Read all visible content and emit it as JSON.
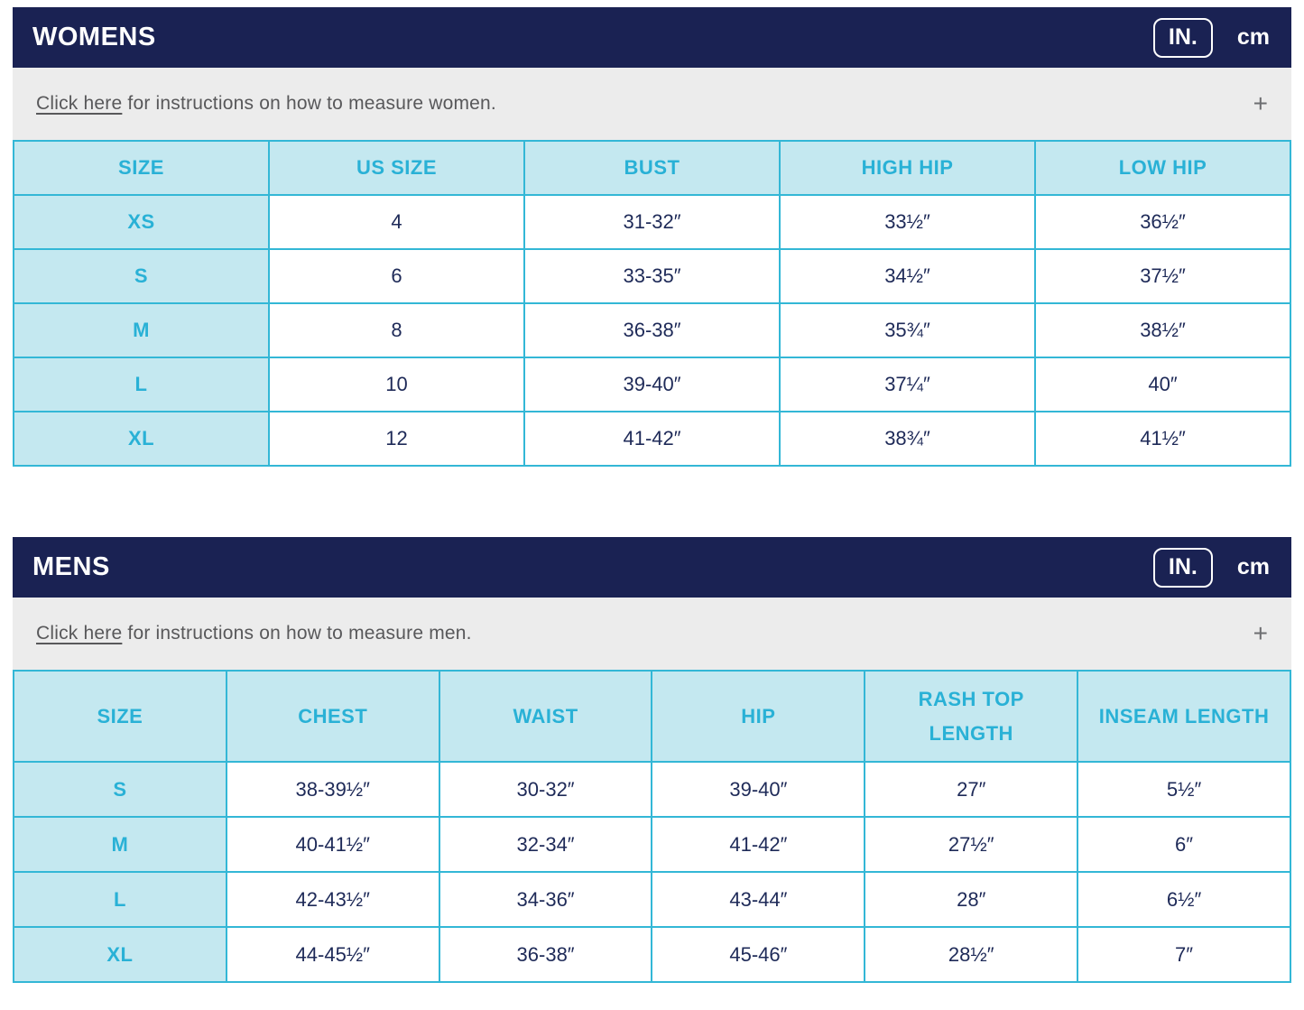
{
  "colors": {
    "navy_bar": "#1a2253",
    "accent_cyan": "#29b1d6",
    "cell_light_blue": "#c4e8f0",
    "table_border": "#33b7d6",
    "gray_bar": "#ececec",
    "gray_text": "#58585a",
    "data_text": "#1e2a58"
  },
  "sections": [
    {
      "id": "womens",
      "title": "WOMENS",
      "unit_in": "IN.",
      "unit_cm": "cm",
      "instructions_link": "Click here",
      "instructions_rest": " for instructions on how to measure women.",
      "expand_icon": "+",
      "table": {
        "columns": [
          "SIZE",
          "US SIZE",
          "BUST",
          "HIGH HIP",
          "LOW HIP"
        ],
        "rows": [
          [
            "XS",
            "4",
            "31-32″",
            "33½″",
            "36½″"
          ],
          [
            "S",
            "6",
            "33-35″",
            "34½″",
            "37½″"
          ],
          [
            "M",
            "8",
            "36-38″",
            "35¾″",
            "38½″"
          ],
          [
            "L",
            "10",
            "39-40″",
            "37¼″",
            "40″"
          ],
          [
            "XL",
            "12",
            "41-42″",
            "38¾″",
            "41½″"
          ]
        ]
      }
    },
    {
      "id": "mens",
      "title": "MENS",
      "unit_in": "IN.",
      "unit_cm": "cm",
      "instructions_link": "Click here",
      "instructions_rest": " for instructions on how to measure men.",
      "expand_icon": "+",
      "table": {
        "columns": [
          "SIZE",
          "CHEST",
          "WAIST",
          "HIP",
          "RASH TOP\nLENGTH",
          "INSEAM LENGTH"
        ],
        "rows": [
          [
            "S",
            "38-39½″",
            "30-32″",
            "39-40″",
            "27″",
            "5½″"
          ],
          [
            "M",
            "40-41½″",
            "32-34″",
            "41-42″",
            "27½″",
            "6″"
          ],
          [
            "L",
            "42-43½″",
            "34-36″",
            "43-44″",
            "28″",
            "6½″"
          ],
          [
            "XL",
            "44-45½″",
            "36-38″",
            "45-46″",
            "28½″",
            "7″"
          ]
        ]
      }
    }
  ]
}
